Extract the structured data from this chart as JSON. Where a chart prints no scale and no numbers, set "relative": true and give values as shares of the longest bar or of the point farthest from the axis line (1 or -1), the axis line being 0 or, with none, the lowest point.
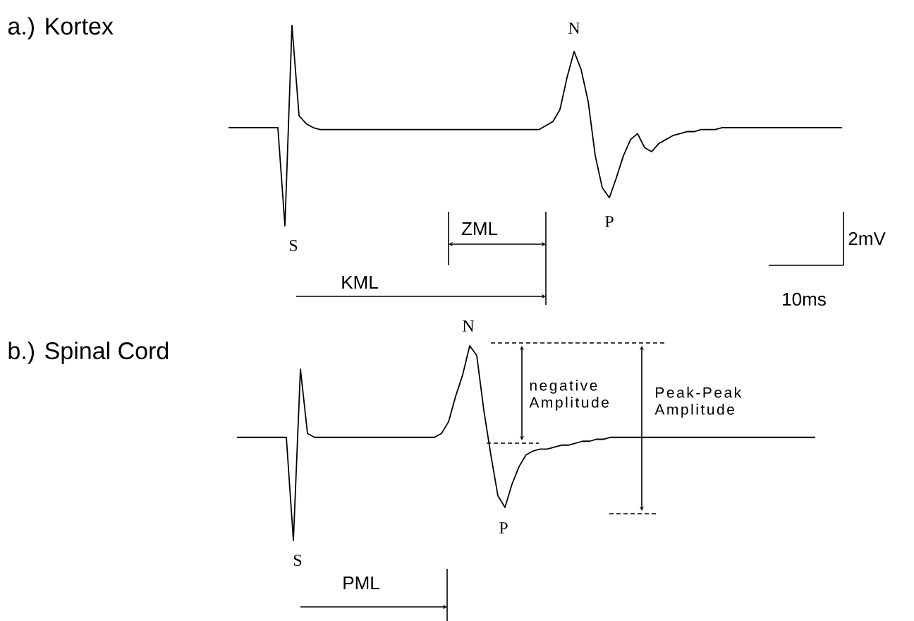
{
  "chart_data": [
    {
      "type": "line",
      "title": "a.) Kortex",
      "relative": true,
      "color": "#000000",
      "categories": [
        null,
        null,
        null,
        null,
        null,
        null,
        null,
        null,
        null,
        null,
        null,
        null,
        null,
        null,
        null,
        null,
        null,
        null,
        null,
        null,
        null,
        null,
        null,
        null,
        null,
        null,
        null,
        null,
        null,
        null,
        null,
        null,
        null,
        null,
        null,
        null,
        null,
        null,
        null,
        null,
        null,
        null,
        null,
        null,
        null,
        null,
        null,
        null,
        null,
        null,
        null,
        null,
        null,
        null,
        null,
        null,
        null,
        null,
        null,
        null,
        null,
        null,
        null,
        null,
        null,
        null,
        null,
        null,
        null,
        null,
        null,
        null,
        null,
        null,
        null,
        null,
        null,
        null,
        null,
        null,
        null,
        null,
        null,
        null,
        null,
        null,
        null,
        null
      ],
      "values": [
        0.49,
        0.49,
        0.49,
        0.49,
        0.49,
        0.49,
        0.49,
        0.49,
        0,
        1,
        0.55,
        0.51,
        0.49,
        0.48,
        0.48,
        0.48,
        0.48,
        0.48,
        0.48,
        0.48,
        0.48,
        0.48,
        0.48,
        0.48,
        0.48,
        0.48,
        0.48,
        0.48,
        0.48,
        0.48,
        0.48,
        0.48,
        0.48,
        0.48,
        0.48,
        0.48,
        0.48,
        0.48,
        0.48,
        0.48,
        0.48,
        0.48,
        0.48,
        0.48,
        0.48,
        0.5,
        0.52,
        0.58,
        0.74,
        0.87,
        0.78,
        0.62,
        0.35,
        0.19,
        0.14,
        0.24,
        0.35,
        0.43,
        0.46,
        0.39,
        0.37,
        0.41,
        0.43,
        0.45,
        0.46,
        0.47,
        0.47,
        0.48,
        0.48,
        0.48,
        0.49,
        0.49,
        0.49,
        0.49,
        0.49,
        0.49,
        0.49,
        0.49,
        0.49,
        0.49,
        0.49,
        0.49,
        0.49,
        0.49,
        0.49,
        0.49,
        0.49,
        0.49
      ],
      "annotations": [
        "S",
        "N",
        "P",
        "ZML",
        "KML",
        "2mV",
        "10ms"
      ]
    },
    {
      "type": "line",
      "title": "b.) Spinal Cord",
      "relative": true,
      "color": "#000000",
      "categories": [
        null,
        null,
        null,
        null,
        null,
        null,
        null,
        null,
        null,
        null,
        null,
        null,
        null,
        null,
        null,
        null,
        null,
        null,
        null,
        null,
        null,
        null,
        null,
        null,
        null,
        null,
        null,
        null,
        null,
        null,
        null,
        null,
        null,
        null,
        null,
        null,
        null,
        null,
        null,
        null,
        null,
        null,
        null,
        null,
        null,
        null,
        null,
        null,
        null,
        null,
        null,
        null,
        null,
        null,
        null,
        null,
        null,
        null,
        null,
        null,
        null,
        null,
        null,
        null,
        null,
        null,
        null,
        null,
        null,
        null,
        null,
        null,
        null,
        null,
        null,
        null,
        null,
        null,
        null,
        null,
        null,
        null,
        null
      ],
      "values": [
        0.53,
        0.53,
        0.53,
        0.53,
        0.53,
        0.53,
        0.53,
        0.53,
        0,
        0.88,
        0.55,
        0.53,
        0.53,
        0.53,
        0.53,
        0.53,
        0.53,
        0.53,
        0.53,
        0.53,
        0.53,
        0.53,
        0.53,
        0.53,
        0.53,
        0.53,
        0.53,
        0.53,
        0.53,
        0.55,
        0.61,
        0.74,
        0.85,
        1,
        0.95,
        0.67,
        0.44,
        0.23,
        0.17,
        0.29,
        0.38,
        0.44,
        0.46,
        0.47,
        0.47,
        0.48,
        0.49,
        0.49,
        0.5,
        0.51,
        0.51,
        0.52,
        0.52,
        0.53,
        0.53,
        0.53,
        0.53,
        0.53,
        0.53,
        0.53,
        0.53,
        0.53,
        0.53,
        0.53,
        0.53,
        0.53,
        0.53,
        0.53,
        0.53,
        0.53,
        0.53,
        0.53,
        0.53,
        0.53,
        0.53,
        0.53,
        0.53,
        0.53,
        0.53,
        0.53,
        0.53,
        0.53,
        0.53
      ],
      "annotations": [
        "N",
        "S",
        "P",
        "PML",
        "negative Amplitude",
        "Peak-Peak Amplitude"
      ]
    }
  ]
}
